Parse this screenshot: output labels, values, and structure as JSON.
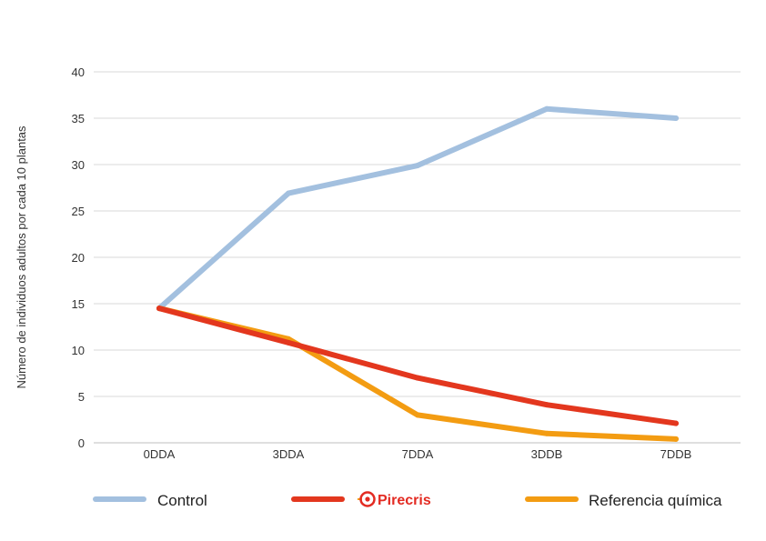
{
  "chart_data": {
    "type": "line",
    "title": "",
    "xlabel": "",
    "ylabel": "Número de individuos adultos por cada 10 plantas",
    "categories": [
      "0DDA",
      "3DDA",
      "7DDA",
      "3DDB",
      "7DDB"
    ],
    "ylim": [
      0,
      40
    ],
    "yticks": [
      0,
      5,
      10,
      15,
      20,
      25,
      30,
      35,
      40
    ],
    "grid": "horizontal",
    "legend_position": "bottom",
    "series": [
      {
        "name": "Control",
        "color": "#a3c0df",
        "values": [
          14.5,
          26.9,
          29.9,
          36.0,
          35.0
        ]
      },
      {
        "name": "Pirecris",
        "color": "#e3371e",
        "values": [
          14.5,
          10.8,
          7.0,
          4.1,
          2.1
        ]
      },
      {
        "name": "Referencia química",
        "color": "#f39c12",
        "values": [
          14.5,
          11.2,
          3.0,
          1.0,
          0.4
        ]
      }
    ]
  }
}
